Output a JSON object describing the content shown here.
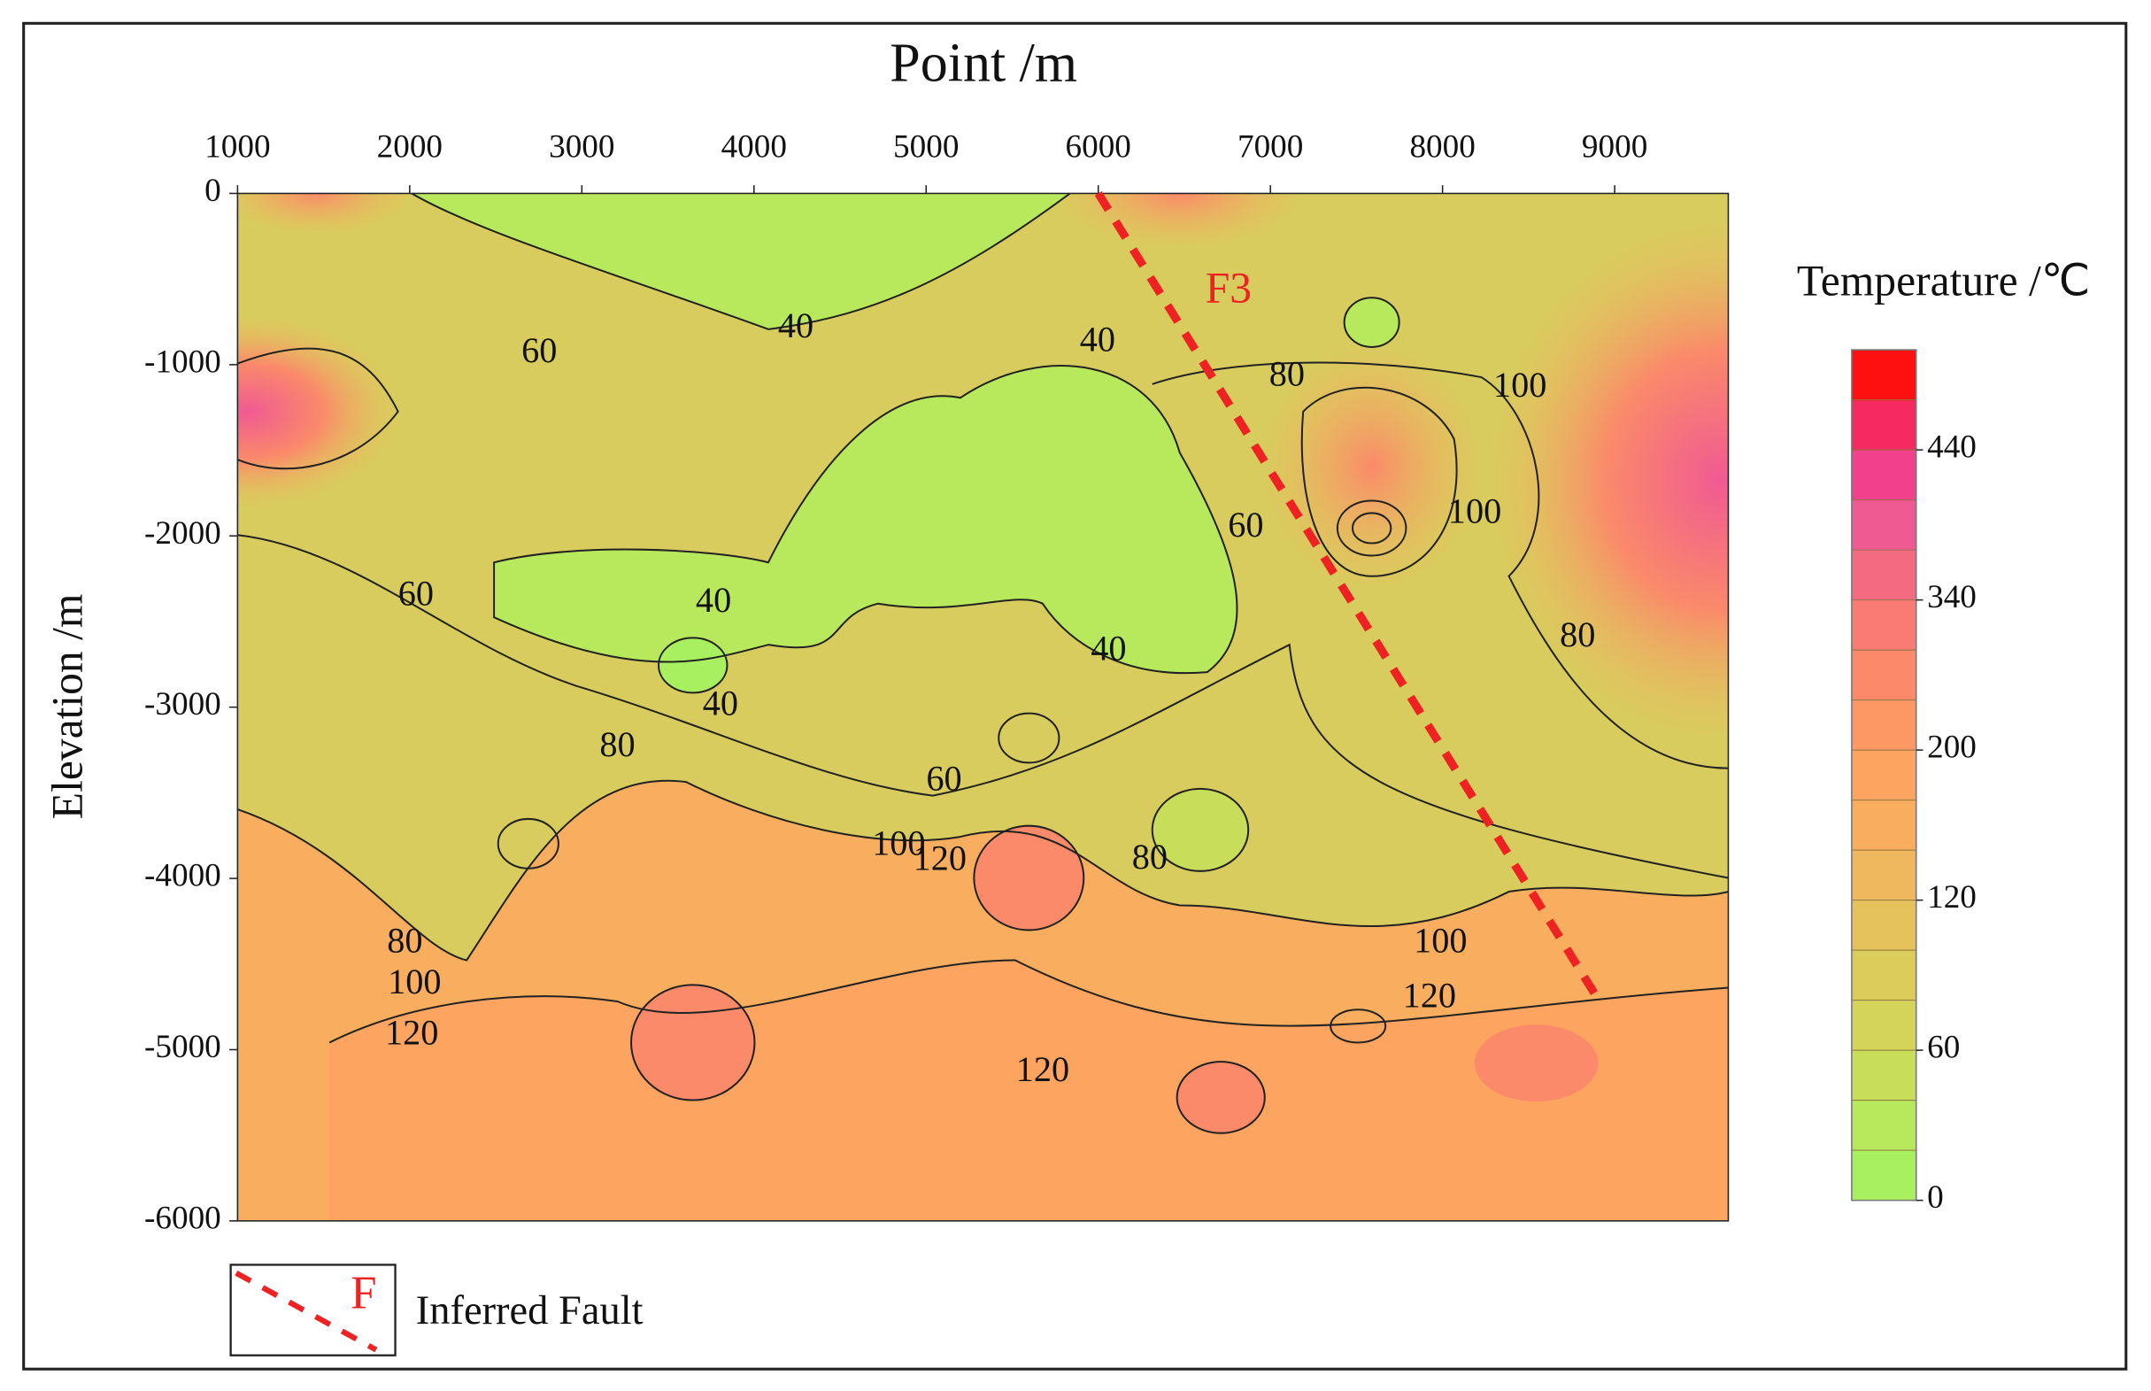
{
  "chart_data": {
    "type": "contour",
    "title": "Point /m",
    "y_label": "Elevation /m",
    "xlim": [
      1000,
      9660
    ],
    "xticks": [
      1000,
      2000,
      3000,
      4000,
      5000,
      6000,
      7000,
      8000,
      9000
    ],
    "ylim": [
      -6000,
      0
    ],
    "yticks": [
      0,
      -1000,
      -2000,
      -3000,
      -4000,
      -5000,
      -6000
    ],
    "contour_labels": [
      {
        "value": 40,
        "x": 4243,
        "y": -793
      },
      {
        "value": 60,
        "x": 2753,
        "y": -937
      },
      {
        "value": 40,
        "x": 5996,
        "y": -873
      },
      {
        "value": 80,
        "x": 7096,
        "y": -1074
      },
      {
        "value": 100,
        "x": 8450,
        "y": -1138
      },
      {
        "value": 60,
        "x": 6857,
        "y": -1955
      },
      {
        "value": 100,
        "x": 8187,
        "y": -1875
      },
      {
        "value": 60,
        "x": 2036,
        "y": -2356
      },
      {
        "value": 40,
        "x": 3765,
        "y": -2396
      },
      {
        "value": 80,
        "x": 8785,
        "y": -2596
      },
      {
        "value": 40,
        "x": 6060,
        "y": -2676
      },
      {
        "value": 40,
        "x": 3805,
        "y": -2997
      },
      {
        "value": 80,
        "x": 3207,
        "y": -3237
      },
      {
        "value": 60,
        "x": 5104,
        "y": -3437
      },
      {
        "value": 100,
        "x": 4841,
        "y": -3814
      },
      {
        "value": 120,
        "x": 5080,
        "y": -3902
      },
      {
        "value": 80,
        "x": 6299,
        "y": -3894
      },
      {
        "value": 80,
        "x": 1972,
        "y": -4383
      },
      {
        "value": 100,
        "x": 2028,
        "y": -4623
      },
      {
        "value": 120,
        "x": 2012,
        "y": -4920
      },
      {
        "value": 100,
        "x": 7988,
        "y": -4383
      },
      {
        "value": 120,
        "x": 7924,
        "y": -4704
      },
      {
        "value": 120,
        "x": 5677,
        "y": -5136
      }
    ],
    "fault": {
      "name": "F3",
      "color": "#ee2222",
      "x": [
        6000,
        8900
      ],
      "y": [
        0,
        -4700
      ]
    },
    "legend": {
      "symbol": "F",
      "label": "Inferred Fault"
    },
    "colorbar": {
      "title": "Temperature /℃",
      "ticks": [
        0,
        60,
        120,
        200,
        340,
        440
      ],
      "band_colors": [
        "#a8f060",
        "#b8e85c",
        "#c8de5a",
        "#d4d45a",
        "#dccc5c",
        "#e6c25c",
        "#f0b85e",
        "#f8ae5e",
        "#fca460",
        "#fd9864",
        "#fc8a6a",
        "#fa7a74",
        "#f46a80",
        "#f05a92",
        "#f2408c",
        "#f62a60",
        "#ff1010"
      ]
    }
  }
}
